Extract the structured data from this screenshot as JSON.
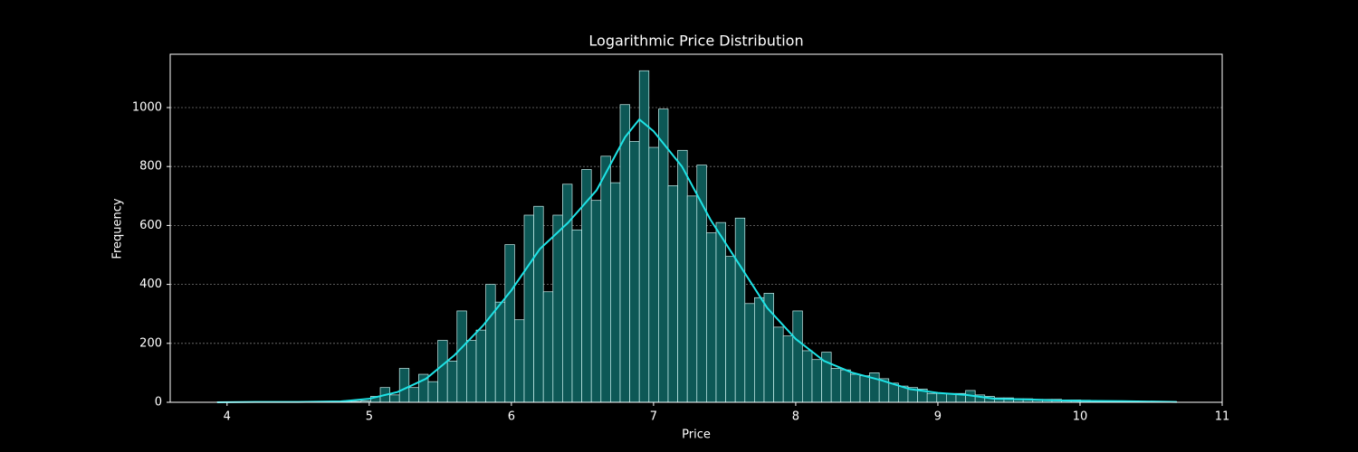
{
  "chart_data": {
    "type": "histogram",
    "title": "Logarithmic Price Distribution",
    "x_label": "Price",
    "y_label": "Frequency",
    "bins": [
      3.93,
      3.9975,
      4.065,
      4.1325,
      4.2,
      4.2675,
      4.335,
      4.4025,
      4.47,
      4.5375,
      4.605,
      4.6725,
      4.74,
      4.8075,
      4.875,
      4.9425,
      5.01,
      5.0775,
      5.145,
      5.2125,
      5.28,
      5.3475,
      5.415,
      5.4825,
      5.55,
      5.6175,
      5.685,
      5.7525,
      5.82,
      5.8875,
      5.955,
      6.0225,
      6.09,
      6.1575,
      6.225,
      6.2925,
      6.36,
      6.4275,
      6.495,
      6.5625,
      6.63,
      6.6975,
      6.765,
      6.8325,
      6.9,
      6.9675,
      7.035,
      7.1025,
      7.17,
      7.2375,
      7.305,
      7.3725,
      7.44,
      7.5075,
      7.575,
      7.6425,
      7.71,
      7.7775,
      7.845,
      7.9125,
      7.98,
      8.0475,
      8.115,
      8.1825,
      8.25,
      8.3175,
      8.385,
      8.4525,
      8.52,
      8.5875,
      8.655,
      8.7225,
      8.79,
      8.8575,
      8.925,
      8.9925,
      9.06,
      9.1275,
      9.195,
      9.2625,
      9.33,
      9.3975,
      9.465,
      9.5325,
      9.6,
      9.6675,
      9.735,
      9.8025,
      9.87,
      9.9375,
      10.005,
      10.0725,
      10.14,
      10.2075,
      10.275,
      10.3425,
      10.41,
      10.4775,
      10.545,
      10.6125,
      10.68
    ],
    "values": [
      1,
      0,
      0,
      1,
      1,
      1,
      2,
      1,
      1,
      1,
      1,
      2,
      2,
      3,
      3,
      5,
      20,
      50,
      25,
      115,
      50,
      95,
      70,
      210,
      140,
      310,
      210,
      245,
      400,
      340,
      535,
      280,
      635,
      665,
      375,
      635,
      740,
      585,
      790,
      685,
      835,
      745,
      1010,
      885,
      1125,
      865,
      995,
      735,
      855,
      700,
      805,
      575,
      610,
      495,
      625,
      335,
      355,
      370,
      255,
      225,
      310,
      175,
      145,
      170,
      115,
      110,
      95,
      90,
      100,
      80,
      65,
      55,
      50,
      45,
      30,
      30,
      30,
      30,
      40,
      25,
      20,
      15,
      15,
      12,
      12,
      10,
      10,
      10,
      8,
      8,
      7,
      5,
      5,
      5,
      5,
      5,
      3,
      3,
      2,
      2,
      2
    ],
    "color": "#0d5856",
    "edge_color": "#c8f0ee",
    "kde": {
      "color": "#1ee3e6",
      "x": [
        3.93,
        4.2,
        4.5,
        4.8,
        5.0,
        5.2,
        5.4,
        5.6,
        5.8,
        6.0,
        6.2,
        6.4,
        6.6,
        6.8,
        6.9,
        7.0,
        7.2,
        7.4,
        7.6,
        7.8,
        8.0,
        8.2,
        8.4,
        8.6,
        8.8,
        9.0,
        9.2,
        9.4,
        9.6,
        9.8,
        10.0,
        10.3,
        10.68
      ],
      "values": [
        0,
        1,
        1,
        3,
        12,
        35,
        80,
        160,
        260,
        380,
        520,
        610,
        720,
        900,
        960,
        920,
        800,
        620,
        470,
        320,
        215,
        140,
        100,
        75,
        45,
        32,
        25,
        12,
        10,
        7,
        5,
        4,
        1
      ]
    },
    "xlim": [
      3.6,
      11.0
    ],
    "ylim": [
      0,
      1181
    ],
    "xticks": [
      4,
      5,
      6,
      7,
      8,
      9,
      10,
      11
    ],
    "yticks": [
      0,
      200,
      400,
      600,
      800,
      1000
    ],
    "grid": true
  }
}
